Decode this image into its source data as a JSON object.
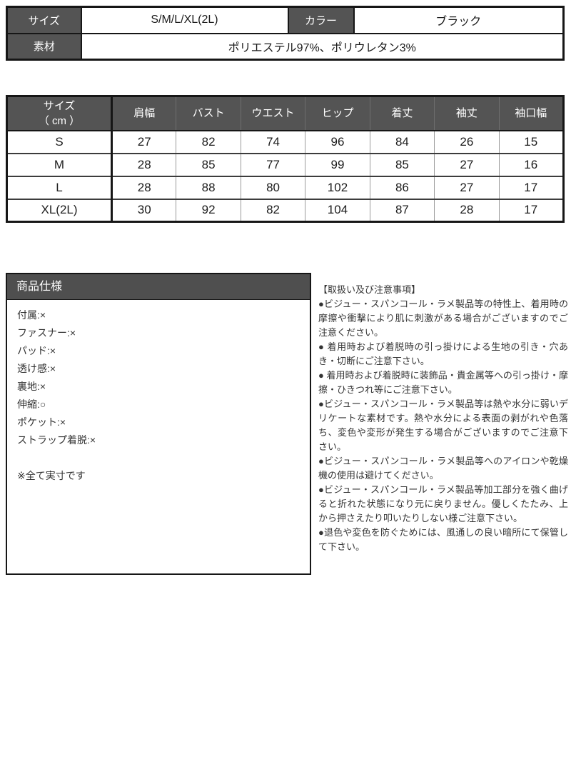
{
  "colors": {
    "header_bg": "#545454",
    "spec_header_bg": "#4f4f4f",
    "header_text": "#ffffff",
    "border_dark": "#161616",
    "border_light": "#9a9a9a",
    "body_text": "#333333"
  },
  "info_table": {
    "size_label": "サイズ",
    "size_value": "S/M/L/XL(2L)",
    "color_label": "カラー",
    "color_value": "ブラック",
    "material_label": "素材",
    "material_value": "ポリエステル97%、ポリウレタン3%"
  },
  "size_chart": {
    "col0": {
      "line1": "サイズ",
      "line2": "（ cm ）"
    },
    "measure_columns": [
      "肩幅",
      "バスト",
      "ウエスト",
      "ヒップ",
      "着丈",
      "袖丈",
      "袖口幅"
    ],
    "rows": [
      {
        "size": "S",
        "values": [
          "27",
          "82",
          "74",
          "96",
          "84",
          "26",
          "15"
        ]
      },
      {
        "size": "M",
        "values": [
          "28",
          "85",
          "77",
          "99",
          "85",
          "27",
          "16"
        ]
      },
      {
        "size": "L",
        "values": [
          "28",
          "88",
          "80",
          "102",
          "86",
          "27",
          "17"
        ]
      },
      {
        "size": "XL(2L)",
        "values": [
          "30",
          "92",
          "82",
          "104",
          "87",
          "28",
          "17"
        ]
      }
    ]
  },
  "spec_box": {
    "title": "商品仕様",
    "items": [
      "付属:×",
      "ファスナー:×",
      "パッド:×",
      "透け感:×",
      "裏地:×",
      "伸縮:○",
      "ポケット:×",
      "ストラップ着脱:×"
    ],
    "note": "※全て実寸です"
  },
  "care_notes": {
    "title": "【取扱い及び注意事項】",
    "items": [
      "●ビジュー・スパンコール・ラメ製品等の特性上、着用時の摩擦や衝撃により肌に刺激がある場合がございますのでご注意ください。",
      "● 着用時および着脱時の引っ掛けによる生地の引き・穴あき・切断にご注意下さい。",
      "● 着用時および着脱時に装飾品・貴金属等への引っ掛け・摩擦・ひきつれ等にご注意下さい。",
      "●ビジュー・スパンコール・ラメ製品等は熱や水分に弱いデリケートな素材です。熱や水分による表面の剥がれや色落ち、変色や変形が発生する場合がございますのでご注意下さい。",
      "●ビジュー・スパンコール・ラメ製品等へのアイロンや乾燥機の使用は避けてください。",
      "●ビジュー・スパンコール・ラメ製品等加工部分を強く曲げると折れた状態になり元に戻りません。優しくたたみ、上から押さえたり叩いたりしない様ご注意下さい。",
      "●退色や変色を防ぐためには、風通しの良い暗所にて保管して下さい。"
    ]
  }
}
